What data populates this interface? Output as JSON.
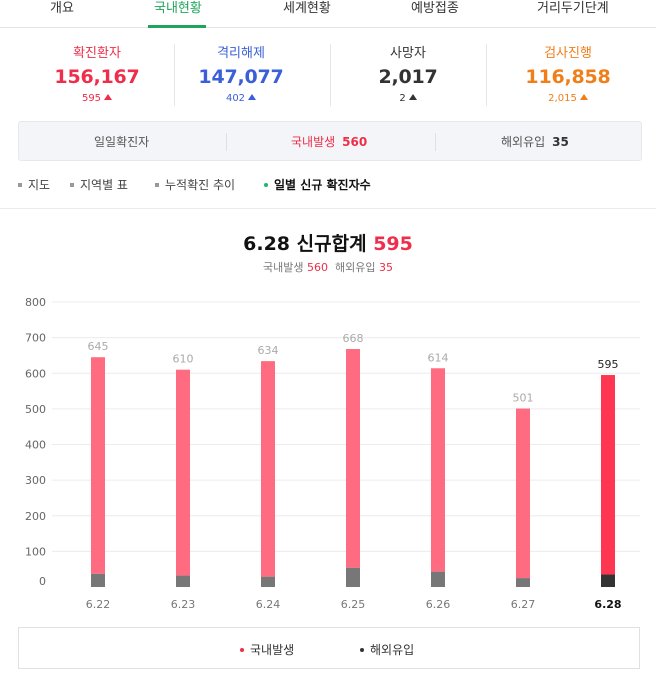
{
  "tabs": [
    {
      "label": "개요"
    },
    {
      "label": "국내현황"
    },
    {
      "label": "세계현황"
    },
    {
      "label": "예방접종"
    },
    {
      "label": "거리두기단계"
    }
  ],
  "stats": [
    {
      "label": "확진환자",
      "value": "156,167",
      "delta": "595",
      "color": "#ee2e4a"
    },
    {
      "label": "격리해제",
      "value": "147,077",
      "delta": "402",
      "color": "#3a5fd8"
    },
    {
      "label": "사망자",
      "value": "2,017",
      "delta": "2",
      "color": "#333333"
    },
    {
      "label": "검사진행",
      "value": "116,858",
      "delta": "2,015",
      "color": "#f07f1a"
    }
  ],
  "daily": {
    "label": "일일확진자",
    "domestic_label": "국내발생",
    "domestic_value": "560",
    "overseas_label": "해외유입",
    "overseas_value": "35"
  },
  "menu": [
    {
      "label": "지도"
    },
    {
      "label": "지역별 표"
    },
    {
      "label": "누적확진 추이"
    },
    {
      "label": "일별 신규 확진자수"
    }
  ],
  "chart_title": {
    "date": "6.28",
    "label": "신규합계",
    "total": "595",
    "domestic_label": "국내발생",
    "domestic": "560",
    "overseas_label": "해외유입",
    "overseas": "35"
  },
  "chart_data": {
    "type": "bar",
    "categories": [
      "6.22",
      "6.23",
      "6.24",
      "6.25",
      "6.26",
      "6.27",
      "6.28"
    ],
    "series": [
      {
        "name": "국내발생",
        "values": [
          608,
          578,
          605,
          614,
          571,
          476,
          560
        ]
      },
      {
        "name": "해외유입",
        "values": [
          37,
          32,
          29,
          54,
          43,
          25,
          35
        ]
      }
    ],
    "totals": [
      645,
      610,
      634,
      668,
      614,
      501,
      595
    ],
    "y_ticks": [
      "800",
      "700",
      "600",
      "500",
      "400",
      "300",
      "200",
      "100",
      "0"
    ],
    "ylim": [
      0,
      800
    ],
    "stacked": true,
    "grid": true,
    "highlight_last": true,
    "colors": {
      "domestic": "#ff6b81",
      "domestic_highlight": "#ff3652",
      "overseas": "#777777",
      "overseas_highlight": "#333333"
    }
  },
  "legend": [
    {
      "label": "국내발생",
      "color": "#ee2e4a"
    },
    {
      "label": "해외유입",
      "color": "#333333"
    }
  ]
}
